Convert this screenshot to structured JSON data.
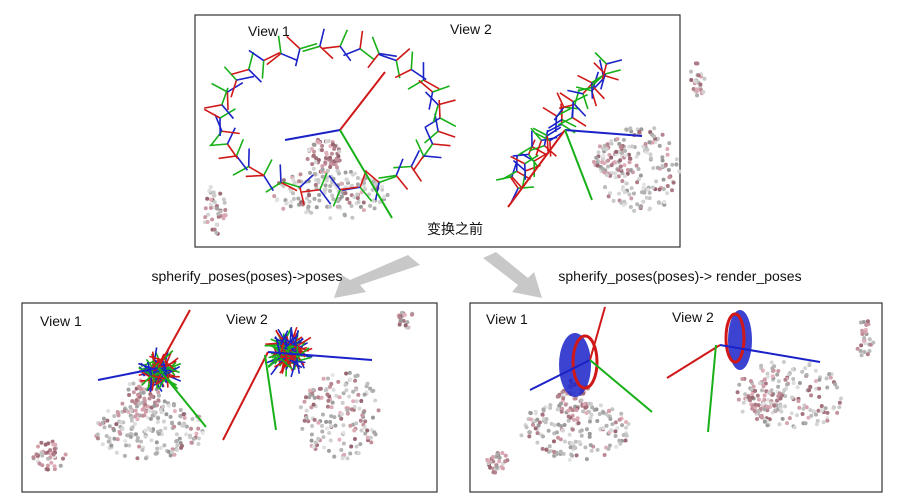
{
  "top_panel": {
    "view1_label": "View 1",
    "view2_label": "View 2",
    "caption": "变换之前"
  },
  "arrows": {
    "left_label": "spherify_poses(poses)->poses",
    "right_label": "spherify_poses(poses)-> render_poses"
  },
  "bottom_left_panel": {
    "view1_label": "View 1",
    "view2_label": "View 2"
  },
  "bottom_right_panel": {
    "view1_label": "View 1",
    "view2_label": "View 2"
  }
}
